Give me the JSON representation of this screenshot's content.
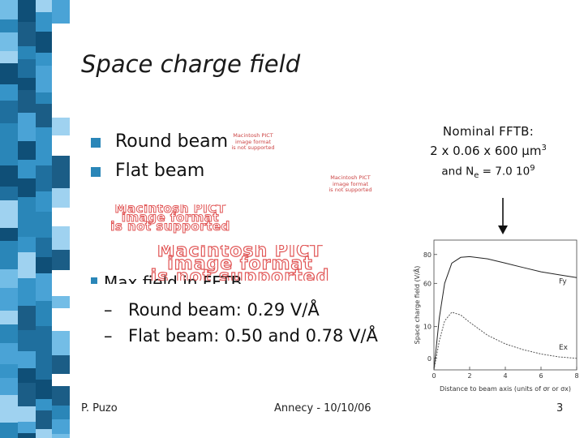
{
  "title": "Space charge field",
  "bullets": [
    {
      "label": "Round beam"
    },
    {
      "label": "Flat beam"
    }
  ],
  "pict_placeholder": {
    "line1": "Macintosh PICT",
    "line2": "image format",
    "line3": "is not supported"
  },
  "partial_bullet": "Max field in FFTB",
  "sub_items": [
    {
      "dash": "–",
      "label": "Round beam: 0.29 V/Å"
    },
    {
      "dash": "–",
      "label": "Flat beam: 0.50 and 0.78 V/Å"
    }
  ],
  "nominal": {
    "line1": "Nominal FFTB:",
    "line2_prefix": "2 x 0.06 x 600 μm",
    "line2_sup": "3",
    "line3_prefix": "and N",
    "line3_sub": "e",
    "line3_mid": " = 7.0 10",
    "line3_sup": "9"
  },
  "chart_data": {
    "type": "line",
    "xlabel": "Distance to beam axis (units of σr or σx)",
    "ylabel": "Space charge field (V/Å)",
    "x_ticks": [
      "0",
      "2",
      "4",
      "6",
      "8"
    ],
    "y_ticks_top": [
      "80",
      "60"
    ],
    "y_ticks_bottom": [
      "10",
      "0"
    ],
    "series": [
      {
        "name": "Fy",
        "x": [
          0,
          0.3,
          0.6,
          1.0,
          1.5,
          2,
          3,
          4,
          5,
          6,
          7,
          8
        ],
        "y": [
          0,
          36,
          60,
          74,
          78,
          78.5,
          77,
          74,
          71,
          68,
          66,
          64
        ]
      },
      {
        "name": "Ex",
        "x": [
          0,
          0.3,
          0.6,
          1.0,
          1.5,
          2,
          3,
          4,
          5,
          6,
          7,
          8
        ],
        "y": [
          0,
          20,
          34,
          40,
          38,
          33,
          24,
          18,
          14,
          11,
          9,
          8
        ]
      }
    ]
  },
  "footer": {
    "author": "P. Puzo",
    "event": "Annecy - 10/10/06",
    "page": "3"
  },
  "colors": {
    "accent": "#2a86b8",
    "pict_red": "#e15656"
  }
}
